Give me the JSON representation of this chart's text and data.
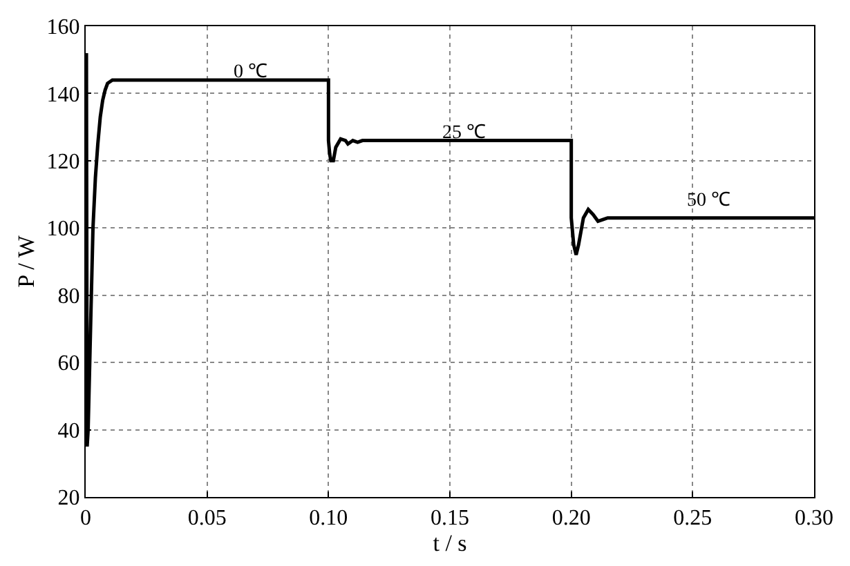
{
  "chart_data": {
    "type": "line",
    "xlabel": "t / s",
    "ylabel": "P / W",
    "series": [
      {
        "color": "#000000",
        "x": [
          0,
          0.0003,
          0.0006,
          0.001,
          0.002,
          0.003,
          0.004,
          0.005,
          0.006,
          0.007,
          0.008,
          0.009,
          0.011,
          0.1,
          0.1,
          0.1005,
          0.101,
          0.102,
          0.103,
          0.105,
          0.107,
          0.108,
          0.11,
          0.112,
          0.114,
          0.2,
          0.2,
          0.201,
          0.202,
          0.203,
          0.205,
          0.207,
          0.209,
          0.211,
          0.213,
          0.215,
          0.3
        ],
        "values": [
          68,
          152,
          35,
          40,
          70,
          100,
          115,
          125,
          133,
          138,
          141,
          143,
          144,
          144,
          126,
          122,
          120,
          120,
          124,
          126.5,
          126,
          125,
          126,
          125.5,
          126,
          126,
          103,
          95,
          92,
          95,
          103,
          105.5,
          104,
          102,
          102.5,
          103,
          103
        ]
      }
    ],
    "xlim": [
      0,
      0.3
    ],
    "ylim": [
      20,
      160
    ],
    "xticks": [
      0,
      0.05,
      {
        "value": 0.1,
        "label": "0.10"
      },
      0.15,
      {
        "value": 0.2,
        "label": "0.20"
      },
      0.25,
      {
        "value": 0.3,
        "label": "0.30"
      }
    ],
    "yticks": [
      20,
      40,
      60,
      80,
      100,
      120,
      140,
      160
    ],
    "grid": true,
    "legend": false,
    "line_style": "solid",
    "annotations": [
      "0 ℃",
      "25 ℃",
      "50 ℃"
    ]
  }
}
